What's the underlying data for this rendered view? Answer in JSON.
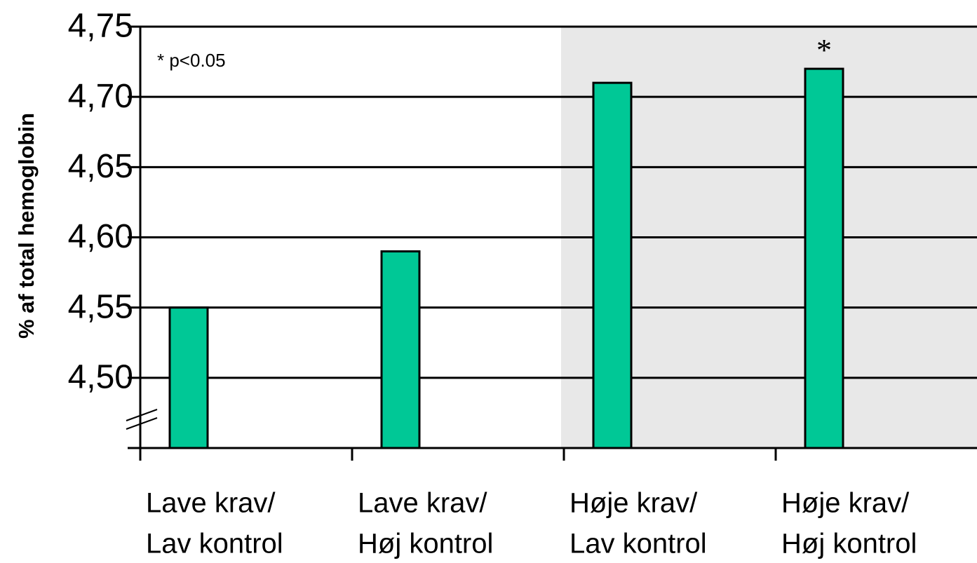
{
  "chart_data": {
    "type": "bar",
    "y_label": "% af total hemoglobin",
    "annotation": "* p<0.05",
    "significance_marker": "*",
    "categories": [
      [
        "Lave krav/",
        "Lav kontrol"
      ],
      [
        "Lave krav/",
        "Høj kontrol"
      ],
      [
        "Høje krav/",
        "Lav kontrol"
      ],
      [
        "Høje krav/",
        "Høj kontrol"
      ]
    ],
    "values": [
      4.55,
      4.59,
      4.71,
      4.72
    ],
    "color": "#00c896",
    "ylim": [
      4.45,
      4.75
    ],
    "yticks": [
      {
        "value": 4.5,
        "label": "4,50"
      },
      {
        "value": 4.55,
        "label": "4,55"
      },
      {
        "value": 4.6,
        "label": "4,60"
      },
      {
        "value": 4.65,
        "label": "4,65"
      },
      {
        "value": 4.7,
        "label": "4,70"
      },
      {
        "value": 4.75,
        "label": "4,75"
      }
    ],
    "grid": true
  }
}
